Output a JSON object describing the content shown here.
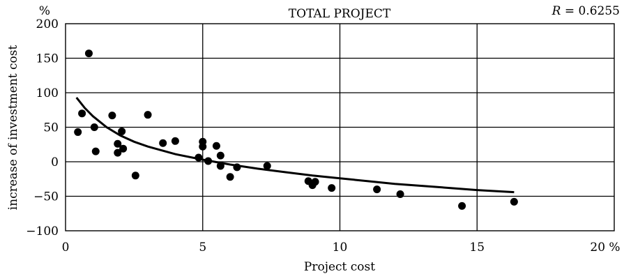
{
  "chart_data": {
    "type": "scatter",
    "title": "TOTAL PROJECT",
    "annotation": {
      "prefix": "R",
      "value": " = 0.6255"
    },
    "xlabel": "Project cost",
    "ylabel": "increase of investment cost",
    "y_unit": "%",
    "x_unit": "20 %",
    "xlim": [
      0,
      20
    ],
    "ylim": [
      -100,
      200
    ],
    "x_ticks": [
      0,
      5,
      10,
      15
    ],
    "x_tick_labels": [
      "0",
      "5",
      "10",
      "15"
    ],
    "y_ticks": [
      200,
      150,
      100,
      50,
      0,
      -50,
      -100
    ],
    "y_tick_labels": [
      "200",
      "150",
      "100",
      "50",
      "0",
      "−50",
      "−100"
    ],
    "grid": true,
    "points": [
      {
        "x": 0.45,
        "y": 43
      },
      {
        "x": 0.6,
        "y": 70
      },
      {
        "x": 0.85,
        "y": 157
      },
      {
        "x": 1.05,
        "y": 50
      },
      {
        "x": 1.1,
        "y": 15
      },
      {
        "x": 1.7,
        "y": 67
      },
      {
        "x": 1.9,
        "y": 26
      },
      {
        "x": 1.9,
        "y": 13
      },
      {
        "x": 2.05,
        "y": 44
      },
      {
        "x": 2.1,
        "y": 19
      },
      {
        "x": 2.55,
        "y": -20
      },
      {
        "x": 3.0,
        "y": 68
      },
      {
        "x": 3.55,
        "y": 27
      },
      {
        "x": 4.0,
        "y": 30
      },
      {
        "x": 4.85,
        "y": 6
      },
      {
        "x": 5.0,
        "y": 29
      },
      {
        "x": 5.0,
        "y": 22
      },
      {
        "x": 5.2,
        "y": 1
      },
      {
        "x": 5.5,
        "y": 23
      },
      {
        "x": 5.65,
        "y": 9
      },
      {
        "x": 5.65,
        "y": -6
      },
      {
        "x": 6.0,
        "y": -22
      },
      {
        "x": 6.25,
        "y": -8
      },
      {
        "x": 7.35,
        "y": -6
      },
      {
        "x": 8.85,
        "y": -28
      },
      {
        "x": 9.0,
        "y": -34
      },
      {
        "x": 9.1,
        "y": -29
      },
      {
        "x": 9.7,
        "y": -38
      },
      {
        "x": 11.35,
        "y": -40
      },
      {
        "x": 12.2,
        "y": -47
      },
      {
        "x": 14.45,
        "y": -64
      },
      {
        "x": 16.35,
        "y": -58
      }
    ],
    "trend": {
      "x": [
        0.4,
        0.7,
        1.0,
        1.5,
        2.0,
        2.5,
        3.0,
        4.0,
        5.0,
        6.0,
        7.0,
        8.0,
        9.0,
        10.0,
        11.0,
        12.0,
        13.0,
        14.0,
        15.0,
        16.35
      ],
      "y": [
        93,
        78,
        66,
        50,
        38,
        29,
        22,
        11,
        3,
        -4,
        -10,
        -15,
        -20,
        -24,
        -28,
        -32,
        -35,
        -38,
        -41,
        -44
      ]
    }
  }
}
